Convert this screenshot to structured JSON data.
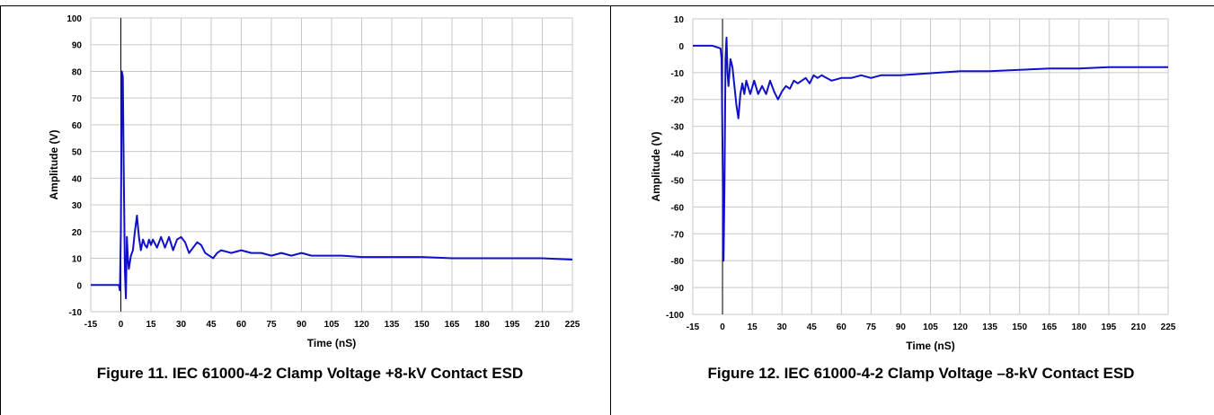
{
  "colors": {
    "trace": "#1010c8",
    "grid": "#c8c8c8",
    "axis": "#000000"
  },
  "chart_data": [
    {
      "type": "line",
      "caption": "Figure 11. IEC 61000-4-2 Clamp Voltage +8-kV Contact ESD",
      "xlabel": "Time (nS)",
      "ylabel": "Amplitude (V)",
      "xlim": [
        -15,
        225
      ],
      "ylim": [
        -10,
        100
      ],
      "xticks": [
        "-15",
        "0",
        "15",
        "30",
        "45",
        "60",
        "75",
        "90",
        "105",
        "120",
        "135",
        "150",
        "165",
        "180",
        "195",
        "210",
        "225"
      ],
      "yticks": [
        "-10",
        "0",
        "10",
        "20",
        "30",
        "40",
        "50",
        "60",
        "70",
        "80",
        "90",
        "100"
      ],
      "grid": true,
      "series": [
        {
          "x": [
            -15,
            -5,
            -1,
            -0.5,
            0,
            0.5,
            1,
            1.5,
            2,
            2.5,
            3,
            3.5,
            4,
            5,
            6,
            7,
            8,
            9,
            10,
            11,
            12,
            13,
            14,
            15,
            16,
            18,
            20,
            22,
            24,
            26,
            28,
            30,
            32,
            34,
            36,
            38,
            40,
            42,
            44,
            46,
            48,
            50,
            55,
            60,
            65,
            70,
            75,
            80,
            85,
            90,
            95,
            100,
            110,
            120,
            135,
            150,
            165,
            180,
            195,
            210,
            225
          ],
          "y": [
            0,
            0,
            0,
            -2,
            20,
            80,
            78,
            40,
            5,
            -5,
            18,
            10,
            6,
            11,
            13,
            20,
            26,
            18,
            13,
            17,
            15,
            14,
            17,
            15,
            17,
            14,
            18,
            14,
            18,
            13,
            17,
            18,
            16,
            12,
            14,
            16,
            15,
            12,
            11,
            10,
            12,
            13,
            12,
            13,
            12,
            12,
            11,
            12,
            11,
            12,
            11,
            11,
            11,
            10.5,
            10.5,
            10.5,
            10,
            10,
            10,
            10,
            9.5
          ]
        }
      ]
    },
    {
      "type": "line",
      "caption": "Figure 12. IEC 61000-4-2 Clamp Voltage –8-kV Contact ESD",
      "xlabel": "Time (nS)",
      "ylabel": "Amplitude (V)",
      "xlim": [
        -15,
        225
      ],
      "ylim": [
        -100,
        10
      ],
      "xticks": [
        "-15",
        "0",
        "15",
        "30",
        "45",
        "60",
        "75",
        "90",
        "105",
        "120",
        "135",
        "150",
        "165",
        "180",
        "195",
        "210",
        "225"
      ],
      "yticks": [
        "10",
        "0",
        "-10",
        "-20",
        "-30",
        "-40",
        "-50",
        "-60",
        "-70",
        "-80",
        "-90",
        "-100"
      ],
      "grid": true,
      "series": [
        {
          "x": [
            -15,
            -5,
            -1,
            -0.5,
            0,
            0.5,
            1,
            1.5,
            2,
            2.5,
            3,
            4,
            5,
            6,
            7,
            8,
            9,
            10,
            11,
            12,
            14,
            16,
            18,
            20,
            22,
            24,
            26,
            28,
            30,
            32,
            34,
            36,
            38,
            40,
            42,
            44,
            46,
            48,
            50,
            55,
            60,
            65,
            70,
            75,
            80,
            85,
            90,
            100,
            110,
            120,
            135,
            150,
            165,
            180,
            195,
            210,
            225
          ],
          "y": [
            0,
            0,
            -1,
            -5,
            -40,
            -80,
            -50,
            -5,
            3,
            -10,
            -15,
            -5,
            -8,
            -15,
            -22,
            -27,
            -18,
            -14,
            -18,
            -13,
            -18,
            -13,
            -18,
            -15,
            -18,
            -13,
            -17,
            -20,
            -17,
            -15,
            -16,
            -13,
            -14,
            -13,
            -12,
            -14,
            -11,
            -12,
            -11,
            -13,
            -12,
            -12,
            -11,
            -12,
            -11,
            -11,
            -11,
            -10.5,
            -10,
            -9.5,
            -9.5,
            -9,
            -8.5,
            -8.5,
            -8,
            -8,
            -8
          ]
        }
      ]
    }
  ]
}
